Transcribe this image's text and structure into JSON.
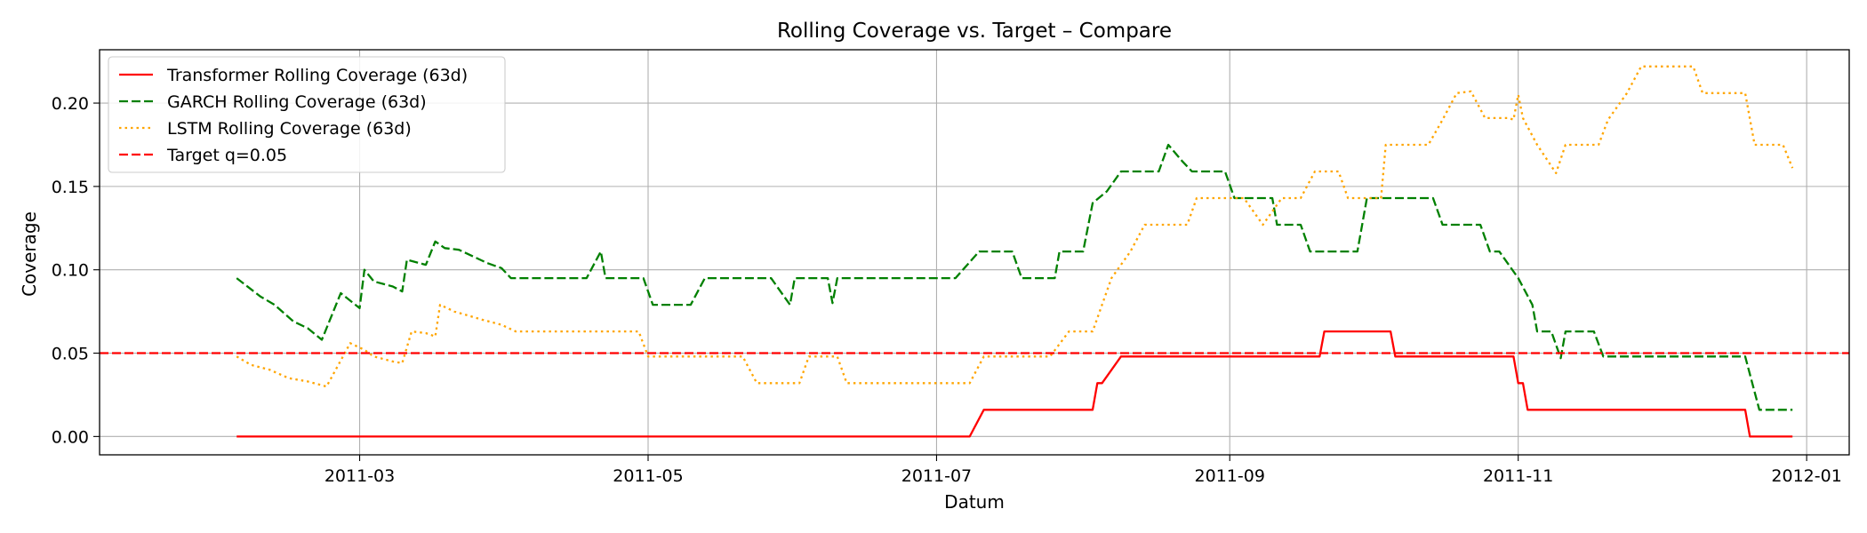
{
  "chart_data": {
    "type": "line",
    "title": "Rolling Coverage vs. Target – Compare",
    "xlabel": "Datum",
    "ylabel": "Coverage",
    "x_axis_type": "date",
    "xlim": [
      "2011-01-05",
      "2012-01-10"
    ],
    "ylim": [
      -0.011,
      0.232
    ],
    "x_ticks": [
      {
        "date": "2011-03-01",
        "label": "2011-03"
      },
      {
        "date": "2011-05-01",
        "label": "2011-05"
      },
      {
        "date": "2011-07-01",
        "label": "2011-07"
      },
      {
        "date": "2011-09-01",
        "label": "2011-09"
      },
      {
        "date": "2011-11-01",
        "label": "2011-11"
      },
      {
        "date": "2012-01-01",
        "label": "2012-01"
      }
    ],
    "y_ticks": [
      {
        "value": 0.0,
        "label": "0.00"
      },
      {
        "value": 0.05,
        "label": "0.05"
      },
      {
        "value": 0.1,
        "label": "0.10"
      },
      {
        "value": 0.15,
        "label": "0.15"
      },
      {
        "value": 0.2,
        "label": "0.20"
      }
    ],
    "grid": true,
    "legend_position": "top-left",
    "series": [
      {
        "name": "Transformer Rolling Coverage (63d)",
        "color": "#ff0000",
        "style": "solid",
        "points": [
          [
            "2011-02-03",
            0.0
          ],
          [
            "2011-07-08",
            0.0
          ],
          [
            "2011-07-11",
            0.016
          ],
          [
            "2011-08-03",
            0.016
          ],
          [
            "2011-08-04",
            0.032
          ],
          [
            "2011-08-05",
            0.032
          ],
          [
            "2011-08-09",
            0.048
          ],
          [
            "2011-09-20",
            0.048
          ],
          [
            "2011-09-21",
            0.063
          ],
          [
            "2011-10-05",
            0.063
          ],
          [
            "2011-10-06",
            0.048
          ],
          [
            "2011-10-31",
            0.048
          ],
          [
            "2011-11-01",
            0.032
          ],
          [
            "2011-11-02",
            0.032
          ],
          [
            "2011-11-03",
            0.016
          ],
          [
            "2011-12-19",
            0.016
          ],
          [
            "2011-12-20",
            0.0
          ],
          [
            "2011-12-29",
            0.0
          ]
        ]
      },
      {
        "name": "GARCH Rolling Coverage (63d)",
        "color": "#008000",
        "style": "dashed",
        "points": [
          [
            "2011-02-03",
            0.095
          ],
          [
            "2011-02-08",
            0.084
          ],
          [
            "2011-02-11",
            0.079
          ],
          [
            "2011-02-15",
            0.069
          ],
          [
            "2011-02-18",
            0.065
          ],
          [
            "2011-02-21",
            0.058
          ],
          [
            "2011-02-25",
            0.086
          ],
          [
            "2011-03-01",
            0.077
          ],
          [
            "2011-03-02",
            0.1
          ],
          [
            "2011-03-04",
            0.093
          ],
          [
            "2011-03-08",
            0.09
          ],
          [
            "2011-03-10",
            0.087
          ],
          [
            "2011-03-11",
            0.106
          ],
          [
            "2011-03-15",
            0.103
          ],
          [
            "2011-03-17",
            0.117
          ],
          [
            "2011-03-19",
            0.113
          ],
          [
            "2011-03-22",
            0.112
          ],
          [
            "2011-03-28",
            0.104
          ],
          [
            "2011-03-31",
            0.101
          ],
          [
            "2011-04-02",
            0.095
          ],
          [
            "2011-04-18",
            0.095
          ],
          [
            "2011-04-21",
            0.111
          ],
          [
            "2011-04-22",
            0.095
          ],
          [
            "2011-04-30",
            0.095
          ],
          [
            "2011-05-02",
            0.079
          ],
          [
            "2011-05-10",
            0.079
          ],
          [
            "2011-05-13",
            0.095
          ],
          [
            "2011-05-27",
            0.095
          ],
          [
            "2011-05-31",
            0.079
          ],
          [
            "2011-06-01",
            0.095
          ],
          [
            "2011-06-08",
            0.095
          ],
          [
            "2011-06-09",
            0.08
          ],
          [
            "2011-06-10",
            0.095
          ],
          [
            "2011-07-05",
            0.095
          ],
          [
            "2011-07-10",
            0.111
          ],
          [
            "2011-07-17",
            0.111
          ],
          [
            "2011-07-19",
            0.095
          ],
          [
            "2011-07-26",
            0.095
          ],
          [
            "2011-07-27",
            0.111
          ],
          [
            "2011-08-01",
            0.111
          ],
          [
            "2011-08-03",
            0.14
          ],
          [
            "2011-08-06",
            0.147
          ],
          [
            "2011-08-09",
            0.159
          ],
          [
            "2011-08-17",
            0.159
          ],
          [
            "2011-08-19",
            0.175
          ],
          [
            "2011-08-22",
            0.165
          ],
          [
            "2011-08-24",
            0.159
          ],
          [
            "2011-08-31",
            0.159
          ],
          [
            "2011-09-02",
            0.143
          ],
          [
            "2011-09-10",
            0.143
          ],
          [
            "2011-09-11",
            0.127
          ],
          [
            "2011-09-16",
            0.127
          ],
          [
            "2011-09-18",
            0.111
          ],
          [
            "2011-09-28",
            0.111
          ],
          [
            "2011-09-30",
            0.143
          ],
          [
            "2011-10-14",
            0.143
          ],
          [
            "2011-10-16",
            0.127
          ],
          [
            "2011-10-24",
            0.127
          ],
          [
            "2011-10-26",
            0.111
          ],
          [
            "2011-10-28",
            0.111
          ],
          [
            "2011-11-01",
            0.095
          ],
          [
            "2011-11-04",
            0.079
          ],
          [
            "2011-11-05",
            0.063
          ],
          [
            "2011-11-08",
            0.063
          ],
          [
            "2011-11-10",
            0.047
          ],
          [
            "2011-11-11",
            0.063
          ],
          [
            "2011-11-17",
            0.063
          ],
          [
            "2011-11-19",
            0.048
          ],
          [
            "2011-12-19",
            0.048
          ],
          [
            "2011-12-22",
            0.016
          ],
          [
            "2011-12-29",
            0.016
          ]
        ]
      },
      {
        "name": "LSTM Rolling Coverage (63d)",
        "color": "#ffa500",
        "style": "dotted",
        "points": [
          [
            "2011-02-03",
            0.048
          ],
          [
            "2011-02-06",
            0.043
          ],
          [
            "2011-02-10",
            0.04
          ],
          [
            "2011-02-14",
            0.035
          ],
          [
            "2011-02-18",
            0.033
          ],
          [
            "2011-02-22",
            0.03
          ],
          [
            "2011-02-27",
            0.056
          ],
          [
            "2011-03-02",
            0.052
          ],
          [
            "2011-03-04",
            0.048
          ],
          [
            "2011-03-08",
            0.045
          ],
          [
            "2011-03-10",
            0.044
          ],
          [
            "2011-03-12",
            0.063
          ],
          [
            "2011-03-15",
            0.062
          ],
          [
            "2011-03-17",
            0.06
          ],
          [
            "2011-03-18",
            0.079
          ],
          [
            "2011-03-21",
            0.075
          ],
          [
            "2011-03-27",
            0.07
          ],
          [
            "2011-03-31",
            0.067
          ],
          [
            "2011-04-03",
            0.063
          ],
          [
            "2011-04-29",
            0.063
          ],
          [
            "2011-05-01",
            0.048
          ],
          [
            "2011-05-21",
            0.048
          ],
          [
            "2011-05-24",
            0.032
          ],
          [
            "2011-06-02",
            0.032
          ],
          [
            "2011-06-04",
            0.048
          ],
          [
            "2011-06-10",
            0.048
          ],
          [
            "2011-06-12",
            0.032
          ],
          [
            "2011-07-08",
            0.032
          ],
          [
            "2011-07-11",
            0.048
          ],
          [
            "2011-07-25",
            0.048
          ],
          [
            "2011-07-29",
            0.063
          ],
          [
            "2011-08-03",
            0.063
          ],
          [
            "2011-08-07",
            0.095
          ],
          [
            "2011-08-11",
            0.111
          ],
          [
            "2011-08-14",
            0.127
          ],
          [
            "2011-08-23",
            0.127
          ],
          [
            "2011-08-25",
            0.143
          ],
          [
            "2011-09-04",
            0.143
          ],
          [
            "2011-09-08",
            0.127
          ],
          [
            "2011-09-12",
            0.143
          ],
          [
            "2011-09-16",
            0.143
          ],
          [
            "2011-09-19",
            0.159
          ],
          [
            "2011-09-24",
            0.159
          ],
          [
            "2011-09-26",
            0.143
          ],
          [
            "2011-10-03",
            0.143
          ],
          [
            "2011-10-04",
            0.175
          ],
          [
            "2011-10-13",
            0.175
          ],
          [
            "2011-10-16",
            0.19
          ],
          [
            "2011-10-19",
            0.206
          ],
          [
            "2011-10-22",
            0.207
          ],
          [
            "2011-10-25",
            0.191
          ],
          [
            "2011-10-30",
            0.191
          ],
          [
            "2011-10-31",
            0.19
          ],
          [
            "2011-11-01",
            0.205
          ],
          [
            "2011-11-02",
            0.191
          ],
          [
            "2011-11-05",
            0.175
          ],
          [
            "2011-11-09",
            0.158
          ],
          [
            "2011-11-11",
            0.175
          ],
          [
            "2011-11-18",
            0.175
          ],
          [
            "2011-11-20",
            0.19
          ],
          [
            "2011-11-24",
            0.206
          ],
          [
            "2011-11-27",
            0.222
          ],
          [
            "2011-12-08",
            0.222
          ],
          [
            "2011-12-10",
            0.206
          ],
          [
            "2011-12-19",
            0.206
          ],
          [
            "2011-12-21",
            0.175
          ],
          [
            "2011-12-27",
            0.175
          ],
          [
            "2011-12-29",
            0.161
          ]
        ]
      }
    ],
    "reference_lines": [
      {
        "name": "Target q=0.05",
        "value": 0.05,
        "color": "#ff0000",
        "style": "dashed"
      }
    ]
  }
}
